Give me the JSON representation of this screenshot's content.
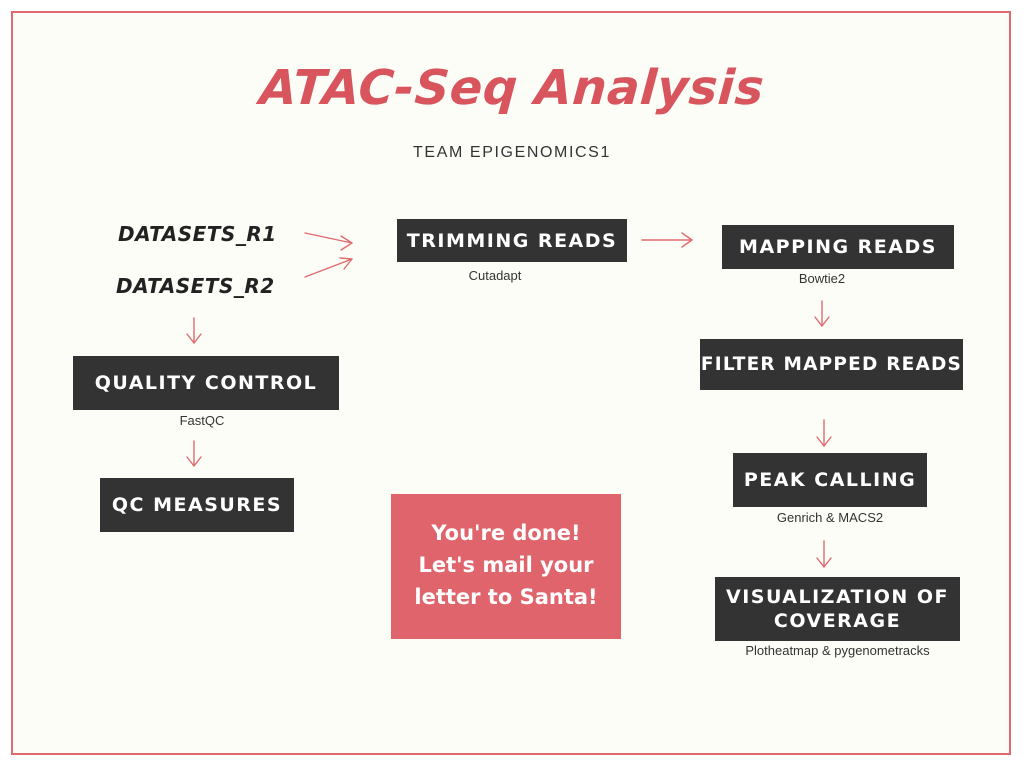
{
  "title": "ATAC-Seq Analysis",
  "subtitle": "TEAM EPIGENOMICS1",
  "datasets": [
    "DATASETS_R1",
    "DATASETS_R2"
  ],
  "steps": {
    "trimming": {
      "label": "TRIMMING READS",
      "tool": "Cutadapt"
    },
    "mapping": {
      "label": "MAPPING READS",
      "tool": "Bowtie2"
    },
    "filter": {
      "label": "FILTER MAPPED READS"
    },
    "quality": {
      "label": "QUALITY CONTROL",
      "tool": "FastQC"
    },
    "qc_measures": {
      "label": "QC MEASURES"
    },
    "peak": {
      "label": "PEAK CALLING",
      "tool": "Genrich & MACS2"
    },
    "visualization": {
      "label_line1": "VISUALIZATION OF",
      "label_line2": "COVERAGE",
      "tool": "Plotheatmap & pygenometracks"
    }
  },
  "done_box": {
    "line1": "You're done!",
    "line2": "Let's mail your",
    "line3": "letter to Santa!"
  },
  "colors": {
    "accent": "#d8555e",
    "box_dark": "#333333",
    "done_bg": "#e0646b",
    "frame": "#e06a6f",
    "arrow": "#e06a6f"
  }
}
